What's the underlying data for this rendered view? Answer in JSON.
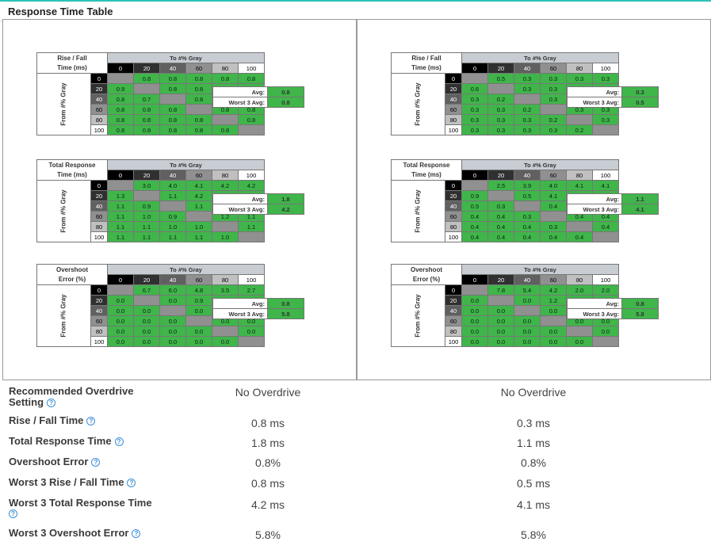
{
  "page_title": "Response Time Table",
  "panels": [
    {
      "tables": [
        {
          "name": "rise-fall",
          "title_line1": "Rise / Fall",
          "title_line2": "Time (ms)",
          "to_label": "To #% Gray",
          "from_label": "From #% Gray",
          "cols": [
            "0",
            "20",
            "40",
            "60",
            "80",
            "100"
          ],
          "rows": [
            {
              "label": "0",
              "cells": [
                "",
                "0.8",
                "0.8",
                "0.8",
                "0.8",
                "0.8"
              ]
            },
            {
              "label": "20",
              "cells": [
                "0.9",
                "",
                "0.8",
                "0.8",
                "0.8",
                "0.8"
              ]
            },
            {
              "label": "40",
              "cells": [
                "0.8",
                "0.7",
                "",
                "0.8",
                "0.8",
                "0.8"
              ]
            },
            {
              "label": "60",
              "cells": [
                "0.8",
                "0.8",
                "0.8",
                "",
                "0.8",
                "0.8"
              ]
            },
            {
              "label": "80",
              "cells": [
                "0.8",
                "0.8",
                "0.8",
                "0.8",
                "",
                "0.8"
              ]
            },
            {
              "label": "100",
              "cells": [
                "0.8",
                "0.8",
                "0.8",
                "0.8",
                "0.8",
                ""
              ]
            }
          ],
          "avg_label": "Avg:",
          "avg_value": "0.8",
          "worst_label": "Worst 3 Avg:",
          "worst_value": "0.8"
        },
        {
          "name": "total-response",
          "title_line1": "Total Response",
          "title_line2": "Time (ms)",
          "to_label": "To #% Gray",
          "from_label": "From #% Gray",
          "cols": [
            "0",
            "20",
            "40",
            "60",
            "80",
            "100"
          ],
          "rows": [
            {
              "label": "0",
              "cells": [
                "",
                "3.0",
                "4.0",
                "4.1",
                "4.2",
                "4.2"
              ]
            },
            {
              "label": "20",
              "cells": [
                "1.3",
                "",
                "1.1",
                "4.2",
                "4.1",
                "1.1"
              ]
            },
            {
              "label": "40",
              "cells": [
                "1.1",
                "0.9",
                "",
                "1.1",
                "1.1",
                "1.1"
              ]
            },
            {
              "label": "60",
              "cells": [
                "1.1",
                "1.0",
                "0.9",
                "",
                "1.2",
                "1.1"
              ]
            },
            {
              "label": "80",
              "cells": [
                "1.1",
                "1.1",
                "1.0",
                "1.0",
                "",
                "1.1"
              ]
            },
            {
              "label": "100",
              "cells": [
                "1.1",
                "1.1",
                "1.1",
                "1.1",
                "1.0",
                ""
              ]
            }
          ],
          "avg_label": "Avg:",
          "avg_value": "1.8",
          "worst_label": "Worst 3 Avg:",
          "worst_value": "4.2"
        },
        {
          "name": "overshoot",
          "title_line1": "Overshoot",
          "title_line2": "Error (%)",
          "to_label": "To #% Gray",
          "from_label": "From #% Gray",
          "cols": [
            "0",
            "20",
            "40",
            "60",
            "80",
            "100"
          ],
          "rows": [
            {
              "label": "0",
              "cells": [
                "",
                "6.7",
                "6.0",
                "4.8",
                "3.5",
                "2.7"
              ]
            },
            {
              "label": "20",
              "cells": [
                "0.0",
                "",
                "0.0",
                "0.9",
                "0.7",
                "0.0"
              ]
            },
            {
              "label": "40",
              "cells": [
                "0.0",
                "0.0",
                "",
                "0.0",
                "0.0",
                "0.0"
              ]
            },
            {
              "label": "60",
              "cells": [
                "0.0",
                "0.0",
                "0.0",
                "",
                "0.0",
                "0.0"
              ]
            },
            {
              "label": "80",
              "cells": [
                "0.0",
                "0.0",
                "0.0",
                "0.0",
                "",
                "0.0"
              ]
            },
            {
              "label": "100",
              "cells": [
                "0.0",
                "0.0",
                "0.0",
                "0.0",
                "0.0",
                ""
              ]
            }
          ],
          "avg_label": "Avg:",
          "avg_value": "0.8",
          "worst_label": "Worst 3 Avg:",
          "worst_value": "5.8"
        }
      ]
    },
    {
      "tables": [
        {
          "name": "rise-fall",
          "title_line1": "Rise / Fall",
          "title_line2": "Time (ms)",
          "to_label": "To #% Gray",
          "from_label": "From #% Gray",
          "cols": [
            "0",
            "20",
            "40",
            "60",
            "80",
            "100"
          ],
          "rows": [
            {
              "label": "0",
              "cells": [
                "",
                "0.5",
                "0.3",
                "0.3",
                "0.3",
                "0.3"
              ]
            },
            {
              "label": "20",
              "cells": [
                "0.6",
                "",
                "0.3",
                "0.3",
                "0.3",
                "0.3"
              ]
            },
            {
              "label": "40",
              "cells": [
                "0.3",
                "0.2",
                "",
                "0.3",
                "0.3",
                "0.3"
              ]
            },
            {
              "label": "60",
              "cells": [
                "0.3",
                "0.3",
                "0.2",
                "",
                "0.3",
                "0.3"
              ]
            },
            {
              "label": "80",
              "cells": [
                "0.3",
                "0.3",
                "0.3",
                "0.2",
                "",
                "0.3"
              ]
            },
            {
              "label": "100",
              "cells": [
                "0.3",
                "0.3",
                "0.3",
                "0.3",
                "0.2",
                ""
              ]
            }
          ],
          "avg_label": "Avg:",
          "avg_value": "0.3",
          "worst_label": "Worst 3 Avg:",
          "worst_value": "0.5"
        },
        {
          "name": "total-response",
          "title_line1": "Total Response",
          "title_line2": "Time (ms)",
          "to_label": "To #% Gray",
          "from_label": "From #% Gray",
          "cols": [
            "0",
            "20",
            "40",
            "60",
            "80",
            "100"
          ],
          "rows": [
            {
              "label": "0",
              "cells": [
                "",
                "2.5",
                "3.9",
                "4.0",
                "4.1",
                "4.1"
              ]
            },
            {
              "label": "20",
              "cells": [
                "0.9",
                "",
                "0.5",
                "4.1",
                "0.4",
                "0.4"
              ]
            },
            {
              "label": "40",
              "cells": [
                "0.5",
                "0.3",
                "",
                "0.4",
                "0.4",
                "0.4"
              ]
            },
            {
              "label": "60",
              "cells": [
                "0.4",
                "0.4",
                "0.3",
                "",
                "0.4",
                "0.4"
              ]
            },
            {
              "label": "80",
              "cells": [
                "0.4",
                "0.4",
                "0.4",
                "0.3",
                "",
                "0.4"
              ]
            },
            {
              "label": "100",
              "cells": [
                "0.4",
                "0.4",
                "0.4",
                "0.4",
                "0.4",
                ""
              ]
            }
          ],
          "avg_label": "Avg:",
          "avg_value": "1.1",
          "worst_label": "Worst 3 Avg:",
          "worst_value": "4.1"
        },
        {
          "name": "overshoot",
          "title_line1": "Overshoot",
          "title_line2": "Error (%)",
          "to_label": "To #% Gray",
          "from_label": "From #% Gray",
          "cols": [
            "0",
            "20",
            "40",
            "60",
            "80",
            "100"
          ],
          "rows": [
            {
              "label": "0",
              "cells": [
                "",
                "7.8",
                "5.4",
                "4.2",
                "2.0",
                "2.0"
              ]
            },
            {
              "label": "20",
              "cells": [
                "0.0",
                "",
                "0.0",
                "1.2",
                "0.0",
                "0.0"
              ]
            },
            {
              "label": "40",
              "cells": [
                "0.0",
                "0.0",
                "",
                "0.0",
                "0.0",
                "0.0"
              ]
            },
            {
              "label": "60",
              "cells": [
                "0.0",
                "0.0",
                "0.0",
                "",
                "0.0",
                "0.0"
              ]
            },
            {
              "label": "80",
              "cells": [
                "0.0",
                "0.0",
                "0.0",
                "0.0",
                "",
                "0.0"
              ]
            },
            {
              "label": "100",
              "cells": [
                "0.0",
                "0.0",
                "0.0",
                "0.0",
                "0.0",
                ""
              ]
            }
          ],
          "avg_label": "Avg:",
          "avg_value": "0.8",
          "worst_label": "Worst 3 Avg:",
          "worst_value": "5.8"
        }
      ]
    }
  ],
  "metrics": [
    {
      "label": "Recommended Overdrive Setting",
      "left": "No Overdrive",
      "right": "No Overdrive"
    },
    {
      "label": "Rise / Fall Time",
      "left": "0.8 ms",
      "right": "0.3 ms"
    },
    {
      "label": "Total Response Time",
      "left": "1.8 ms",
      "right": "1.1 ms"
    },
    {
      "label": "Overshoot Error",
      "left": "0.8%",
      "right": "0.8%"
    },
    {
      "label": "Worst 3 Rise / Fall Time",
      "left": "0.8 ms",
      "right": "0.5 ms"
    },
    {
      "label": "Worst 3 Total Response Time",
      "left": "4.2 ms",
      "right": "4.1 ms"
    },
    {
      "label": "Worst 3 Overshoot Error",
      "left": "5.8%",
      "right": "5.8%"
    }
  ],
  "colors": {
    "accent_line": "#2bc3b8",
    "cell_green": "#3fb54a",
    "help_icon": "#3a8fd8"
  },
  "icons": {
    "help": "help-circle-icon"
  },
  "help_glyph": "?"
}
